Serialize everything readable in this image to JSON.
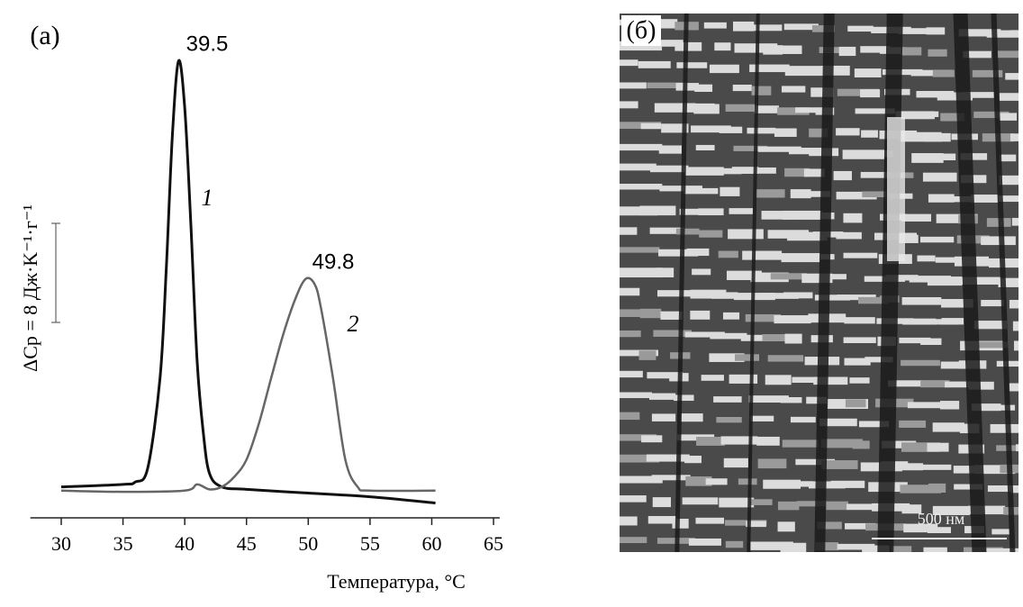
{
  "chart_data": {
    "type": "line",
    "panel_label": "(a)",
    "x_label": "Температура, °C",
    "y_label": "ΔCp = 8 Дж·K⁻¹·г⁻¹",
    "scale_bar_value": 8,
    "xlim": [
      27.5,
      65.5
    ],
    "xticks": [
      30,
      35,
      40,
      45,
      50,
      55,
      60,
      65
    ],
    "ylim": [
      0,
      40
    ],
    "annotations": [
      "39.5",
      "49.8"
    ],
    "series": [
      {
        "name": "1",
        "color": "#111111",
        "x": [
          30,
          35,
          36,
          37,
          38,
          38.5,
          39,
          39.5,
          40,
          40.5,
          41,
          41.5,
          42,
          43,
          45,
          50,
          55,
          60.3
        ],
        "values": [
          2.5,
          2.7,
          2.9,
          4.0,
          11.3,
          20,
          30.9,
          36.9,
          33.1,
          23.6,
          12.7,
          6.9,
          3.6,
          2.5,
          2.3,
          2.0,
          1.7,
          1.2
        ]
      },
      {
        "name": "2",
        "color": "#666666",
        "x": [
          30,
          35,
          40,
          41,
          42,
          43,
          44,
          45,
          46,
          47,
          48,
          49,
          49.8,
          50.5,
          51,
          52,
          53,
          54,
          55,
          60.3
        ],
        "values": [
          2.2,
          2.1,
          2.2,
          2.7,
          2.3,
          2.5,
          3.3,
          4.7,
          7.6,
          11.3,
          14.9,
          17.8,
          19.3,
          18.9,
          17.1,
          11.3,
          4.7,
          2.5,
          2.2,
          2.2
        ]
      }
    ]
  },
  "image_panel": {
    "label": "(б)",
    "scale_bar": "500 нм"
  }
}
